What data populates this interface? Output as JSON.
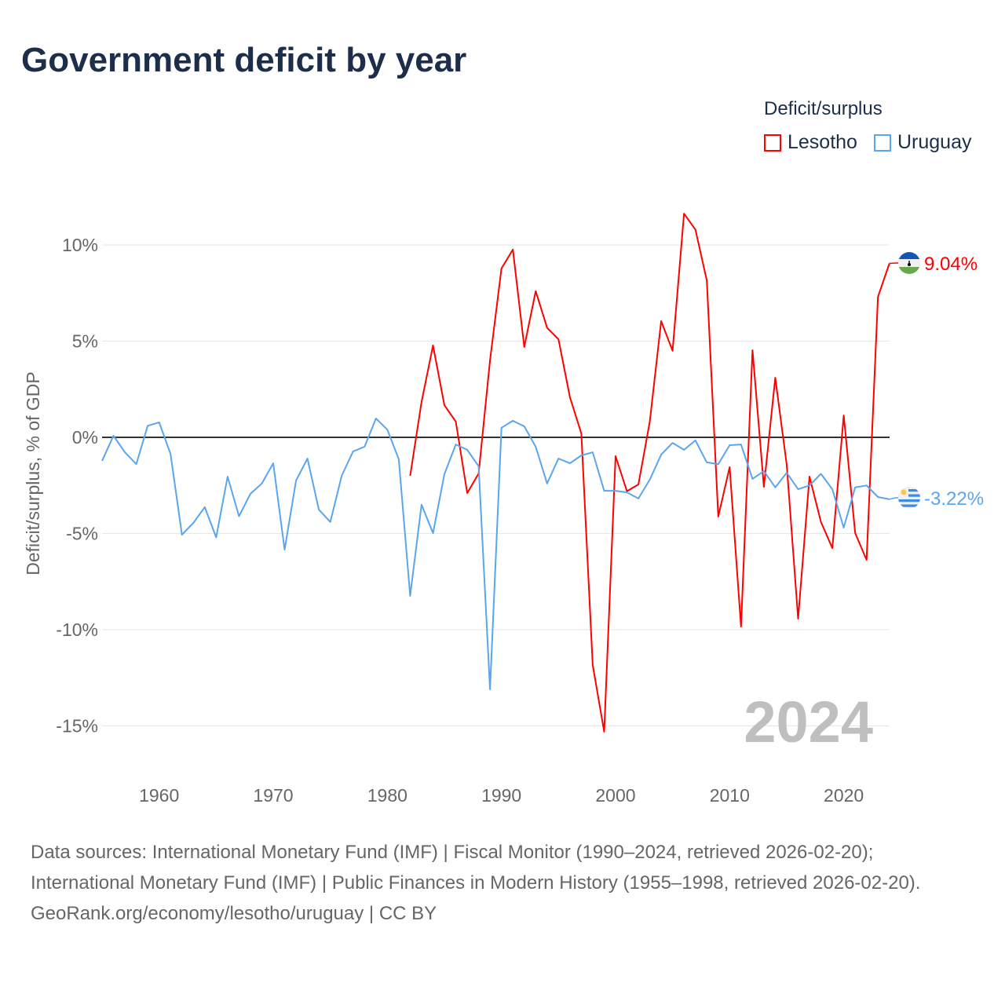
{
  "chart_data": {
    "type": "line",
    "title": "Government deficit by year",
    "ylabel": "Deficit/surplus, % of GDP",
    "xlabel": "",
    "ylim": [
      -17,
      12
    ],
    "xlim": [
      1955,
      2024
    ],
    "yticks": [
      10,
      5,
      0,
      -5,
      -10,
      -15
    ],
    "ytick_labels": [
      "10%",
      "5%",
      "0%",
      "-5%",
      "-10%",
      "-15%"
    ],
    "xticks": [
      1960,
      1970,
      1980,
      1990,
      2000,
      2010,
      2020
    ],
    "xtick_labels": [
      "1960",
      "1970",
      "1980",
      "1990",
      "2000",
      "2010",
      "2020"
    ],
    "legend_title": "Deficit/surplus",
    "legend_position": "top-right",
    "year_watermark": "2024",
    "series": [
      {
        "name": "Lesotho",
        "color": "#ff0000",
        "end_label": "9.04%",
        "start_year": 1982,
        "values": [
          -2.0,
          1.84,
          4.78,
          1.67,
          0.82,
          -2.9,
          -1.88,
          4.0,
          8.78,
          9.76,
          4.7,
          7.6,
          5.7,
          5.1,
          2.08,
          0.2,
          -11.84,
          -15.3,
          -0.98,
          -2.8,
          -2.45,
          0.82,
          6.04,
          4.5,
          11.63,
          10.8,
          8.16,
          -4.12,
          -1.55,
          -9.84,
          4.53,
          -2.57,
          3.1,
          -1.43,
          -9.43,
          -2.04,
          -4.4,
          -5.76,
          1.14,
          -4.98,
          -6.37,
          7.3,
          9.04
        ]
      },
      {
        "name": "Uruguay",
        "color": "#5aa5ee",
        "end_label": "-3.22%",
        "start_year": 1955,
        "values": [
          -1.22,
          0.08,
          -0.78,
          -1.39,
          0.6,
          0.78,
          -0.86,
          -5.06,
          -4.45,
          -3.63,
          -5.2,
          -2.04,
          -4.1,
          -2.94,
          -2.4,
          -1.35,
          -5.84,
          -2.24,
          -1.1,
          -3.76,
          -4.4,
          -2.0,
          -0.73,
          -0.49,
          0.98,
          0.4,
          -1.14,
          -8.24,
          -3.5,
          -4.98,
          -1.92,
          -0.37,
          -0.65,
          -1.5,
          -13.1,
          0.5,
          0.86,
          0.57,
          -0.49,
          -2.4,
          -1.1,
          -1.35,
          -0.94,
          -0.78,
          -2.78,
          -2.78,
          -2.86,
          -3.18,
          -2.2,
          -0.9,
          -0.29,
          -0.65,
          -0.16,
          -1.3,
          -1.39,
          -0.41,
          -0.37,
          -2.16,
          -1.76,
          -2.6,
          -1.84,
          -2.7,
          -2.5,
          -1.9,
          -2.7,
          -4.7,
          -2.6,
          -2.5,
          -3.1,
          -3.22
        ]
      }
    ]
  },
  "footer": {
    "sources": "Data sources: International Monetary Fund (IMF) | Fiscal Monitor (1990–2024, retrieved 2026-02-20); International Monetary Fund (IMF) | Public Finances in Modern History (1955–1998, retrieved 2026-02-20).",
    "credit": "GeoRank.org/economy/lesotho/uruguay | CC BY"
  }
}
